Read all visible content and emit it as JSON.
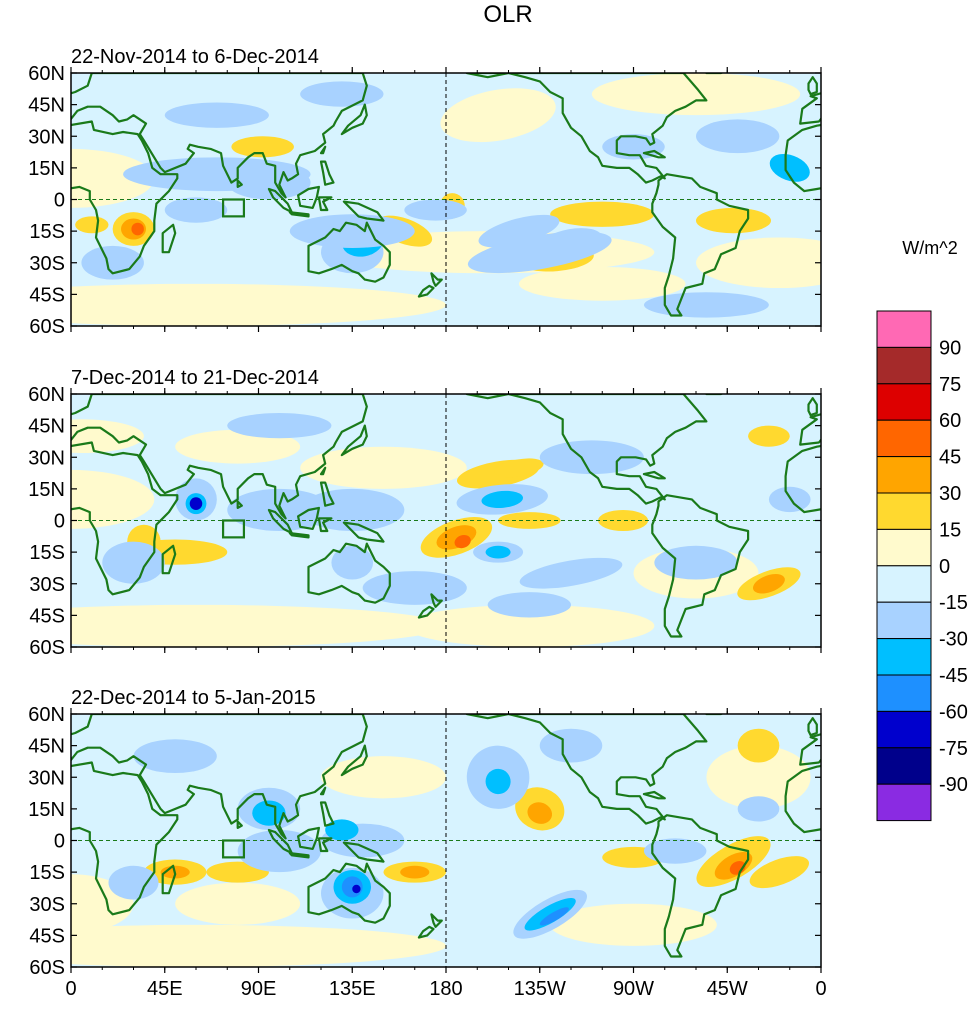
{
  "title": "OLR",
  "units_label": "W/m^2",
  "panels": [
    {
      "date_range": "22-Nov-2014 to 6-Dec-2014"
    },
    {
      "date_range": "7-Dec-2014 to 21-Dec-2014"
    },
    {
      "date_range": "22-Dec-2014 to 5-Jan-2015"
    }
  ],
  "lat_ticks": [
    "60N",
    "45N",
    "30N",
    "15N",
    "0",
    "15S",
    "30S",
    "45S",
    "60S"
  ],
  "lon_ticks": [
    "0",
    "45E",
    "90E",
    "135E",
    "180",
    "135W",
    "90W",
    "45W",
    "0"
  ],
  "colorbar": {
    "labels": [
      "90",
      "75",
      "60",
      "45",
      "30",
      "15",
      "0",
      "-15",
      "-30",
      "-45",
      "-60",
      "-75",
      "-90"
    ],
    "colors": [
      "#ff69b4",
      "#a52a2a",
      "#dd0000",
      "#ff6600",
      "#ffa500",
      "#ffd92f",
      "#fffacd",
      "#d7f3ff",
      "#a8d2ff",
      "#00bfff",
      "#1e90ff",
      "#0000cd",
      "#00008b",
      "#8a2be2"
    ]
  },
  "colors": {
    "ocean_bg": "#d7f3ff",
    "coast": "#1a7a1a"
  },
  "chart_data": {
    "type": "heatmap",
    "variable": "OLR anomaly",
    "units": "W/m^2",
    "lat_range": [
      -60,
      60
    ],
    "lon_range": [
      0,
      360
    ],
    "levels": [
      -90,
      -75,
      -60,
      -45,
      -30,
      -15,
      0,
      15,
      30,
      45,
      60,
      75,
      90
    ]
  }
}
